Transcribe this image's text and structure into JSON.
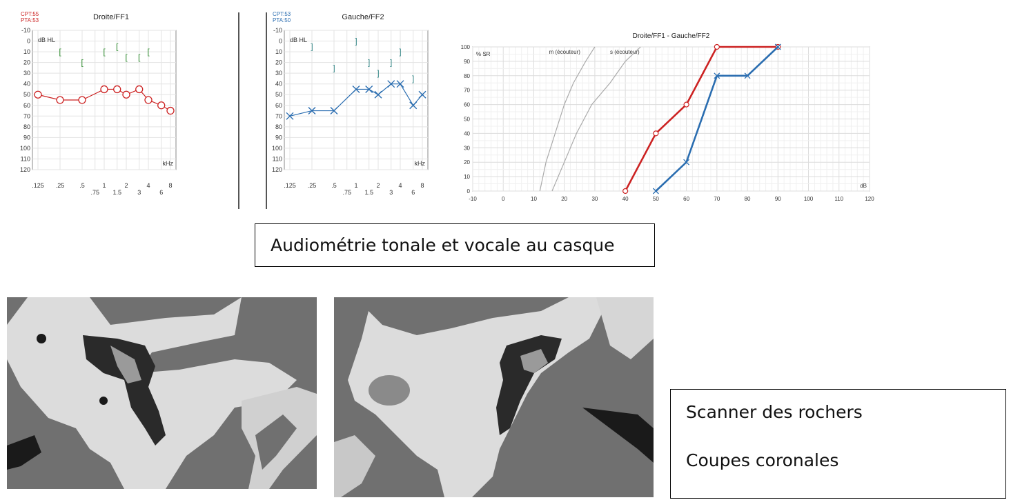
{
  "audiograms": [
    {
      "title": "Droite/FF1",
      "cpt": "CPT:55",
      "pta": "PTA:53",
      "pta_color": "#cc2222",
      "unit_label": "dB HL",
      "khz_label": "kHz",
      "y_ticks": [
        "-10",
        "0",
        "10",
        "20",
        "30",
        "40",
        "50",
        "60",
        "70",
        "80",
        "90",
        "100",
        "110",
        "120"
      ],
      "x_ticks_top": [
        ".125",
        ".25",
        ".5",
        "1",
        "2",
        "4",
        "8"
      ],
      "x_ticks_bottom": [
        ".75",
        "1.5",
        "3",
        "6"
      ],
      "air_color": "#cc2222",
      "air_symbol": "circle",
      "air_freqs": [
        0.125,
        0.25,
        0.5,
        1,
        1.5,
        2,
        3,
        4,
        6,
        8
      ],
      "air_values": [
        50,
        55,
        55,
        45,
        45,
        50,
        45,
        55,
        60,
        65
      ],
      "bone_color": "#2e8b2e",
      "bone_symbol": "[",
      "bone_freqs": [
        0.25,
        0.5,
        1,
        1.5,
        2,
        3,
        4
      ],
      "bone_values": [
        10,
        20,
        10,
        5,
        15,
        15,
        10
      ]
    },
    {
      "title": "Gauche/FF2",
      "cpt": "CPT:53",
      "pta": "PTA:50",
      "pta_color": "#2a6db0",
      "unit_label": "dB HL",
      "khz_label": "kHz",
      "y_ticks": [
        "-10",
        "0",
        "10",
        "20",
        "30",
        "40",
        "50",
        "60",
        "70",
        "80",
        "90",
        "100",
        "110",
        "120"
      ],
      "x_ticks_top": [
        ".125",
        ".25",
        ".5",
        "1",
        "2",
        "4",
        "8"
      ],
      "x_ticks_bottom": [
        ".75",
        "1.5",
        "3",
        "6"
      ],
      "air_color": "#2a6db0",
      "air_symbol": "cross",
      "air_freqs": [
        0.125,
        0.25,
        0.5,
        1,
        1.5,
        2,
        3,
        4,
        6,
        8
      ],
      "air_values": [
        70,
        65,
        65,
        45,
        45,
        50,
        40,
        40,
        60,
        50
      ],
      "bone_color": "#3a8a8a",
      "bone_symbol": "]",
      "bone_freqs": [
        0.25,
        0.5,
        1,
        1.5,
        2,
        3,
        4,
        6
      ],
      "bone_values": [
        5,
        25,
        0,
        20,
        30,
        20,
        10,
        35
      ]
    }
  ],
  "speech": {
    "title": "Droite/FF1 - Gauche/FF2",
    "ylabel": "% SR",
    "xlabel": "dB",
    "x_ticks": [
      "-10",
      "0",
      "10",
      "20",
      "30",
      "40",
      "50",
      "60",
      "70",
      "80",
      "90",
      "100",
      "110",
      "120"
    ],
    "y_ticks": [
      "0",
      "10",
      "20",
      "30",
      "40",
      "50",
      "60",
      "70",
      "80",
      "90",
      "100"
    ],
    "ref_m_label": "m (écouteur)",
    "ref_s_label": "s (écouteur)"
  },
  "chart_data": [
    {
      "type": "line",
      "title": "Droite/FF1",
      "annotations": [
        "CPT:55",
        "PTA:53"
      ],
      "xlabel": "kHz",
      "ylabel": "dB HL",
      "ylim": [
        -10,
        120
      ],
      "y_inverted": true,
      "x_scale": "log",
      "series": [
        {
          "x": [
            0.125,
            0.25,
            0.5,
            1,
            1.5,
            2,
            3,
            4,
            6,
            8
          ],
          "values": [
            50,
            55,
            55,
            45,
            45,
            50,
            45,
            55,
            60,
            65
          ],
          "color": "#cc2222"
        },
        {
          "x": [
            0.25,
            0.5,
            1,
            1.5,
            2,
            3,
            4
          ],
          "values": [
            10,
            20,
            10,
            5,
            15,
            15,
            10
          ],
          "color": "#2e8b2e"
        }
      ]
    },
    {
      "type": "line",
      "title": "Gauche/FF2",
      "annotations": [
        "CPT:53",
        "PTA:50"
      ],
      "xlabel": "kHz",
      "ylabel": "dB HL",
      "ylim": [
        -10,
        120
      ],
      "y_inverted": true,
      "x_scale": "log",
      "series": [
        {
          "x": [
            0.125,
            0.25,
            0.5,
            1,
            1.5,
            2,
            3,
            4,
            6,
            8
          ],
          "values": [
            70,
            65,
            65,
            45,
            45,
            50,
            40,
            40,
            60,
            50
          ],
          "color": "#2a6db0"
        },
        {
          "x": [
            0.25,
            0.5,
            1,
            1.5,
            2,
            3,
            4,
            6
          ],
          "values": [
            5,
            25,
            0,
            20,
            30,
            20,
            10,
            35
          ],
          "color": "#3a8a8a"
        }
      ]
    },
    {
      "type": "line",
      "title": "Droite/FF1 - Gauche/FF2",
      "xlabel": "dB",
      "ylabel": "% SR",
      "xlim": [
        -10,
        120
      ],
      "ylim": [
        0,
        100
      ],
      "grid": true,
      "series": [
        {
          "x": [
            40,
            50,
            60,
            70,
            90
          ],
          "values": [
            0,
            40,
            60,
            100,
            100
          ],
          "color": "#cc2222"
        },
        {
          "x": [
            50,
            60,
            70,
            80,
            90
          ],
          "values": [
            0,
            20,
            80,
            80,
            100
          ],
          "color": "#2a6db0"
        },
        {
          "name": "m (écouteur)",
          "x": [
            12,
            14,
            17,
            20,
            23,
            27,
            30
          ],
          "values": [
            0,
            20,
            40,
            60,
            75,
            90,
            100
          ],
          "color": "#aaaaaa"
        },
        {
          "name": "s (écouteur)",
          "x": [
            16,
            20,
            24,
            29,
            35,
            40,
            45
          ],
          "values": [
            0,
            20,
            40,
            60,
            75,
            90,
            100
          ],
          "color": "#aaaaaa"
        }
      ]
    }
  ],
  "captions": {
    "audiometry": "Audiométrie tonale et vocale au casque",
    "scanner_line1": "Scanner des rochers",
    "scanner_line2": "Coupes coronales"
  }
}
